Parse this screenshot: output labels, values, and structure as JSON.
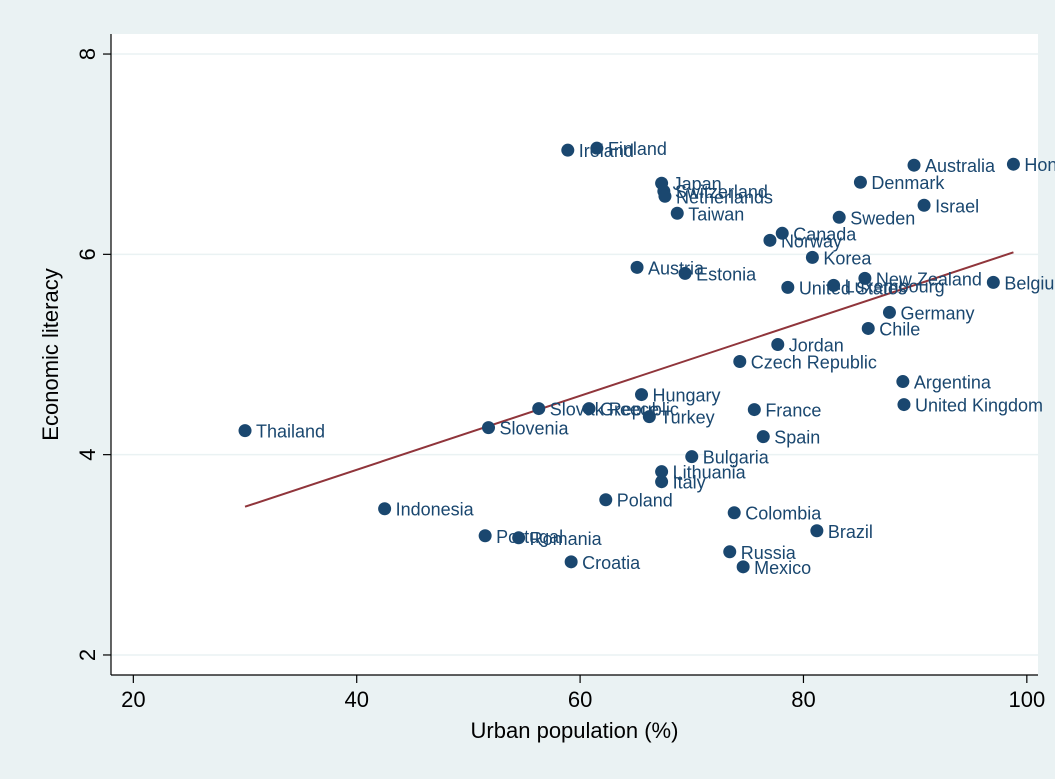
{
  "chart_data": {
    "type": "scatter",
    "title": "",
    "xlabel": "Urban population (%)",
    "ylabel": "Economic literacy",
    "xlim": [
      18,
      101
    ],
    "ylim": [
      1.8,
      8.2
    ],
    "xticks": [
      20,
      40,
      60,
      80,
      100
    ],
    "yticks": [
      2,
      4,
      6,
      8
    ],
    "grid": "horizontal",
    "legend": "none",
    "colors": {
      "outer_background": "#eaf2f3",
      "plot_background": "#ffffff",
      "gridline": "#eaf2f3",
      "marker": "#1a476f",
      "label": "#1a476f",
      "fit_line": "#90353b",
      "axis": "#000000"
    },
    "points": [
      {
        "label": "Thailand",
        "x": 30.0,
        "y": 4.24
      },
      {
        "label": "Indonesia",
        "x": 42.5,
        "y": 3.46
      },
      {
        "label": "Portugal",
        "x": 51.5,
        "y": 3.19
      },
      {
        "label": "Slovenia",
        "x": 51.8,
        "y": 4.27
      },
      {
        "label": "Romania",
        "x": 54.5,
        "y": 3.17
      },
      {
        "label": "Slovak Republic",
        "x": 56.3,
        "y": 4.46
      },
      {
        "label": "Ireland",
        "x": 58.9,
        "y": 7.04
      },
      {
        "label": "Croatia",
        "x": 59.2,
        "y": 2.93
      },
      {
        "label": "Greece",
        "x": 60.8,
        "y": 4.46
      },
      {
        "label": "Finland",
        "x": 61.5,
        "y": 7.06
      },
      {
        "label": "Poland",
        "x": 62.3,
        "y": 3.55
      },
      {
        "label": "Austria",
        "x": 65.1,
        "y": 5.87
      },
      {
        "label": "Hungary",
        "x": 65.5,
        "y": 4.6
      },
      {
        "label": "Turkey",
        "x": 66.2,
        "y": 4.38
      },
      {
        "label": "Italy",
        "x": 67.3,
        "y": 3.73
      },
      {
        "label": "Lithuania",
        "x": 67.3,
        "y": 3.83
      },
      {
        "label": "Japan",
        "x": 67.3,
        "y": 6.71
      },
      {
        "label": "Switzerland",
        "x": 67.5,
        "y": 6.63
      },
      {
        "label": "Netherlands",
        "x": 67.6,
        "y": 6.58
      },
      {
        "label": "Taiwan",
        "x": 68.7,
        "y": 6.41
      },
      {
        "label": "Estonia",
        "x": 69.4,
        "y": 5.81
      },
      {
        "label": "Bulgaria",
        "x": 70.0,
        "y": 3.98
      },
      {
        "label": "Russia",
        "x": 73.4,
        "y": 3.03
      },
      {
        "label": "Colombia",
        "x": 73.8,
        "y": 3.42
      },
      {
        "label": "Czech Republic",
        "x": 74.3,
        "y": 4.93
      },
      {
        "label": "Mexico",
        "x": 74.6,
        "y": 2.88
      },
      {
        "label": "France",
        "x": 75.6,
        "y": 4.45
      },
      {
        "label": "Spain",
        "x": 76.4,
        "y": 4.18
      },
      {
        "label": "Norway",
        "x": 77.0,
        "y": 6.14
      },
      {
        "label": "Jordan",
        "x": 77.7,
        "y": 5.1
      },
      {
        "label": "Canada",
        "x": 78.1,
        "y": 6.21
      },
      {
        "label": "United States",
        "x": 78.6,
        "y": 5.67
      },
      {
        "label": "Korea",
        "x": 80.8,
        "y": 5.97
      },
      {
        "label": "Brazil",
        "x": 81.2,
        "y": 3.24
      },
      {
        "label": "Luxembourg",
        "x": 82.7,
        "y": 5.69
      },
      {
        "label": "Sweden",
        "x": 83.2,
        "y": 6.37
      },
      {
        "label": "Denmark",
        "x": 85.1,
        "y": 6.72
      },
      {
        "label": "New Zealand",
        "x": 85.5,
        "y": 5.76
      },
      {
        "label": "Chile",
        "x": 85.8,
        "y": 5.26
      },
      {
        "label": "Germany",
        "x": 87.7,
        "y": 5.42
      },
      {
        "label": "Argentina",
        "x": 88.9,
        "y": 4.73
      },
      {
        "label": "United Kingdom",
        "x": 89.0,
        "y": 4.5
      },
      {
        "label": "Australia",
        "x": 89.9,
        "y": 6.89
      },
      {
        "label": "Israel",
        "x": 90.8,
        "y": 6.49
      },
      {
        "label": "Belgium",
        "x": 97.0,
        "y": 5.72
      },
      {
        "label": "Hong Kong",
        "x": 98.8,
        "y": 6.9
      }
    ],
    "fit_line": {
      "x": [
        30.0,
        98.8
      ],
      "y": [
        3.48,
        6.02
      ]
    }
  }
}
